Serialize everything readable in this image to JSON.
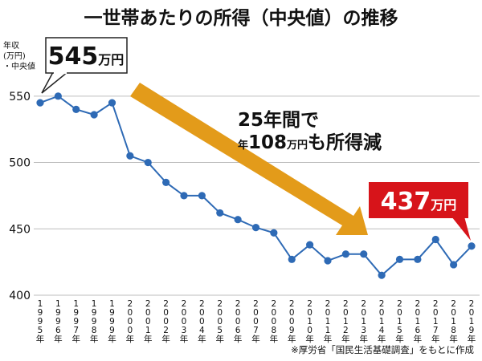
{
  "chart_data": {
    "type": "line",
    "title": "一世帯あたりの所得（中央値）の推移",
    "ylabel_lines": [
      "年収",
      "(万円)",
      "・中央値"
    ],
    "ylim": [
      400,
      565
    ],
    "yticks": [
      400,
      450,
      500,
      550
    ],
    "grid": true,
    "x": [
      "1995",
      "1996",
      "1997",
      "1998",
      "1999",
      "2000",
      "2001",
      "2002",
      "2003",
      "2004",
      "2005",
      "2006",
      "2007",
      "2008",
      "2009",
      "2010",
      "2011",
      "2012",
      "2013",
      "2014",
      "2015",
      "2016",
      "2017",
      "2018",
      "2019"
    ],
    "x_suffix": "年",
    "series": [
      {
        "values": [
          545,
          550,
          540,
          536,
          545,
          505,
          500,
          485,
          475,
          475,
          462,
          457,
          451,
          447,
          427,
          438,
          426,
          431,
          431,
          415,
          427,
          427,
          442,
          423,
          437
        ],
        "color": "#2e6ab5"
      }
    ],
    "callouts": {
      "start": {
        "number": "545",
        "unit": "万円"
      },
      "end": {
        "number": "437",
        "unit": "万円",
        "bg": "#d7141a"
      }
    },
    "arrow": {
      "color": "#e39b1a"
    },
    "annotation": {
      "line1": "25年間で",
      "line2_prefix": "年",
      "line2_number": "108",
      "line2_unit": "万円",
      "line2_suffix": "も所得減"
    },
    "source": "※厚労省「国民生活基礎調査」をもとに作成"
  }
}
